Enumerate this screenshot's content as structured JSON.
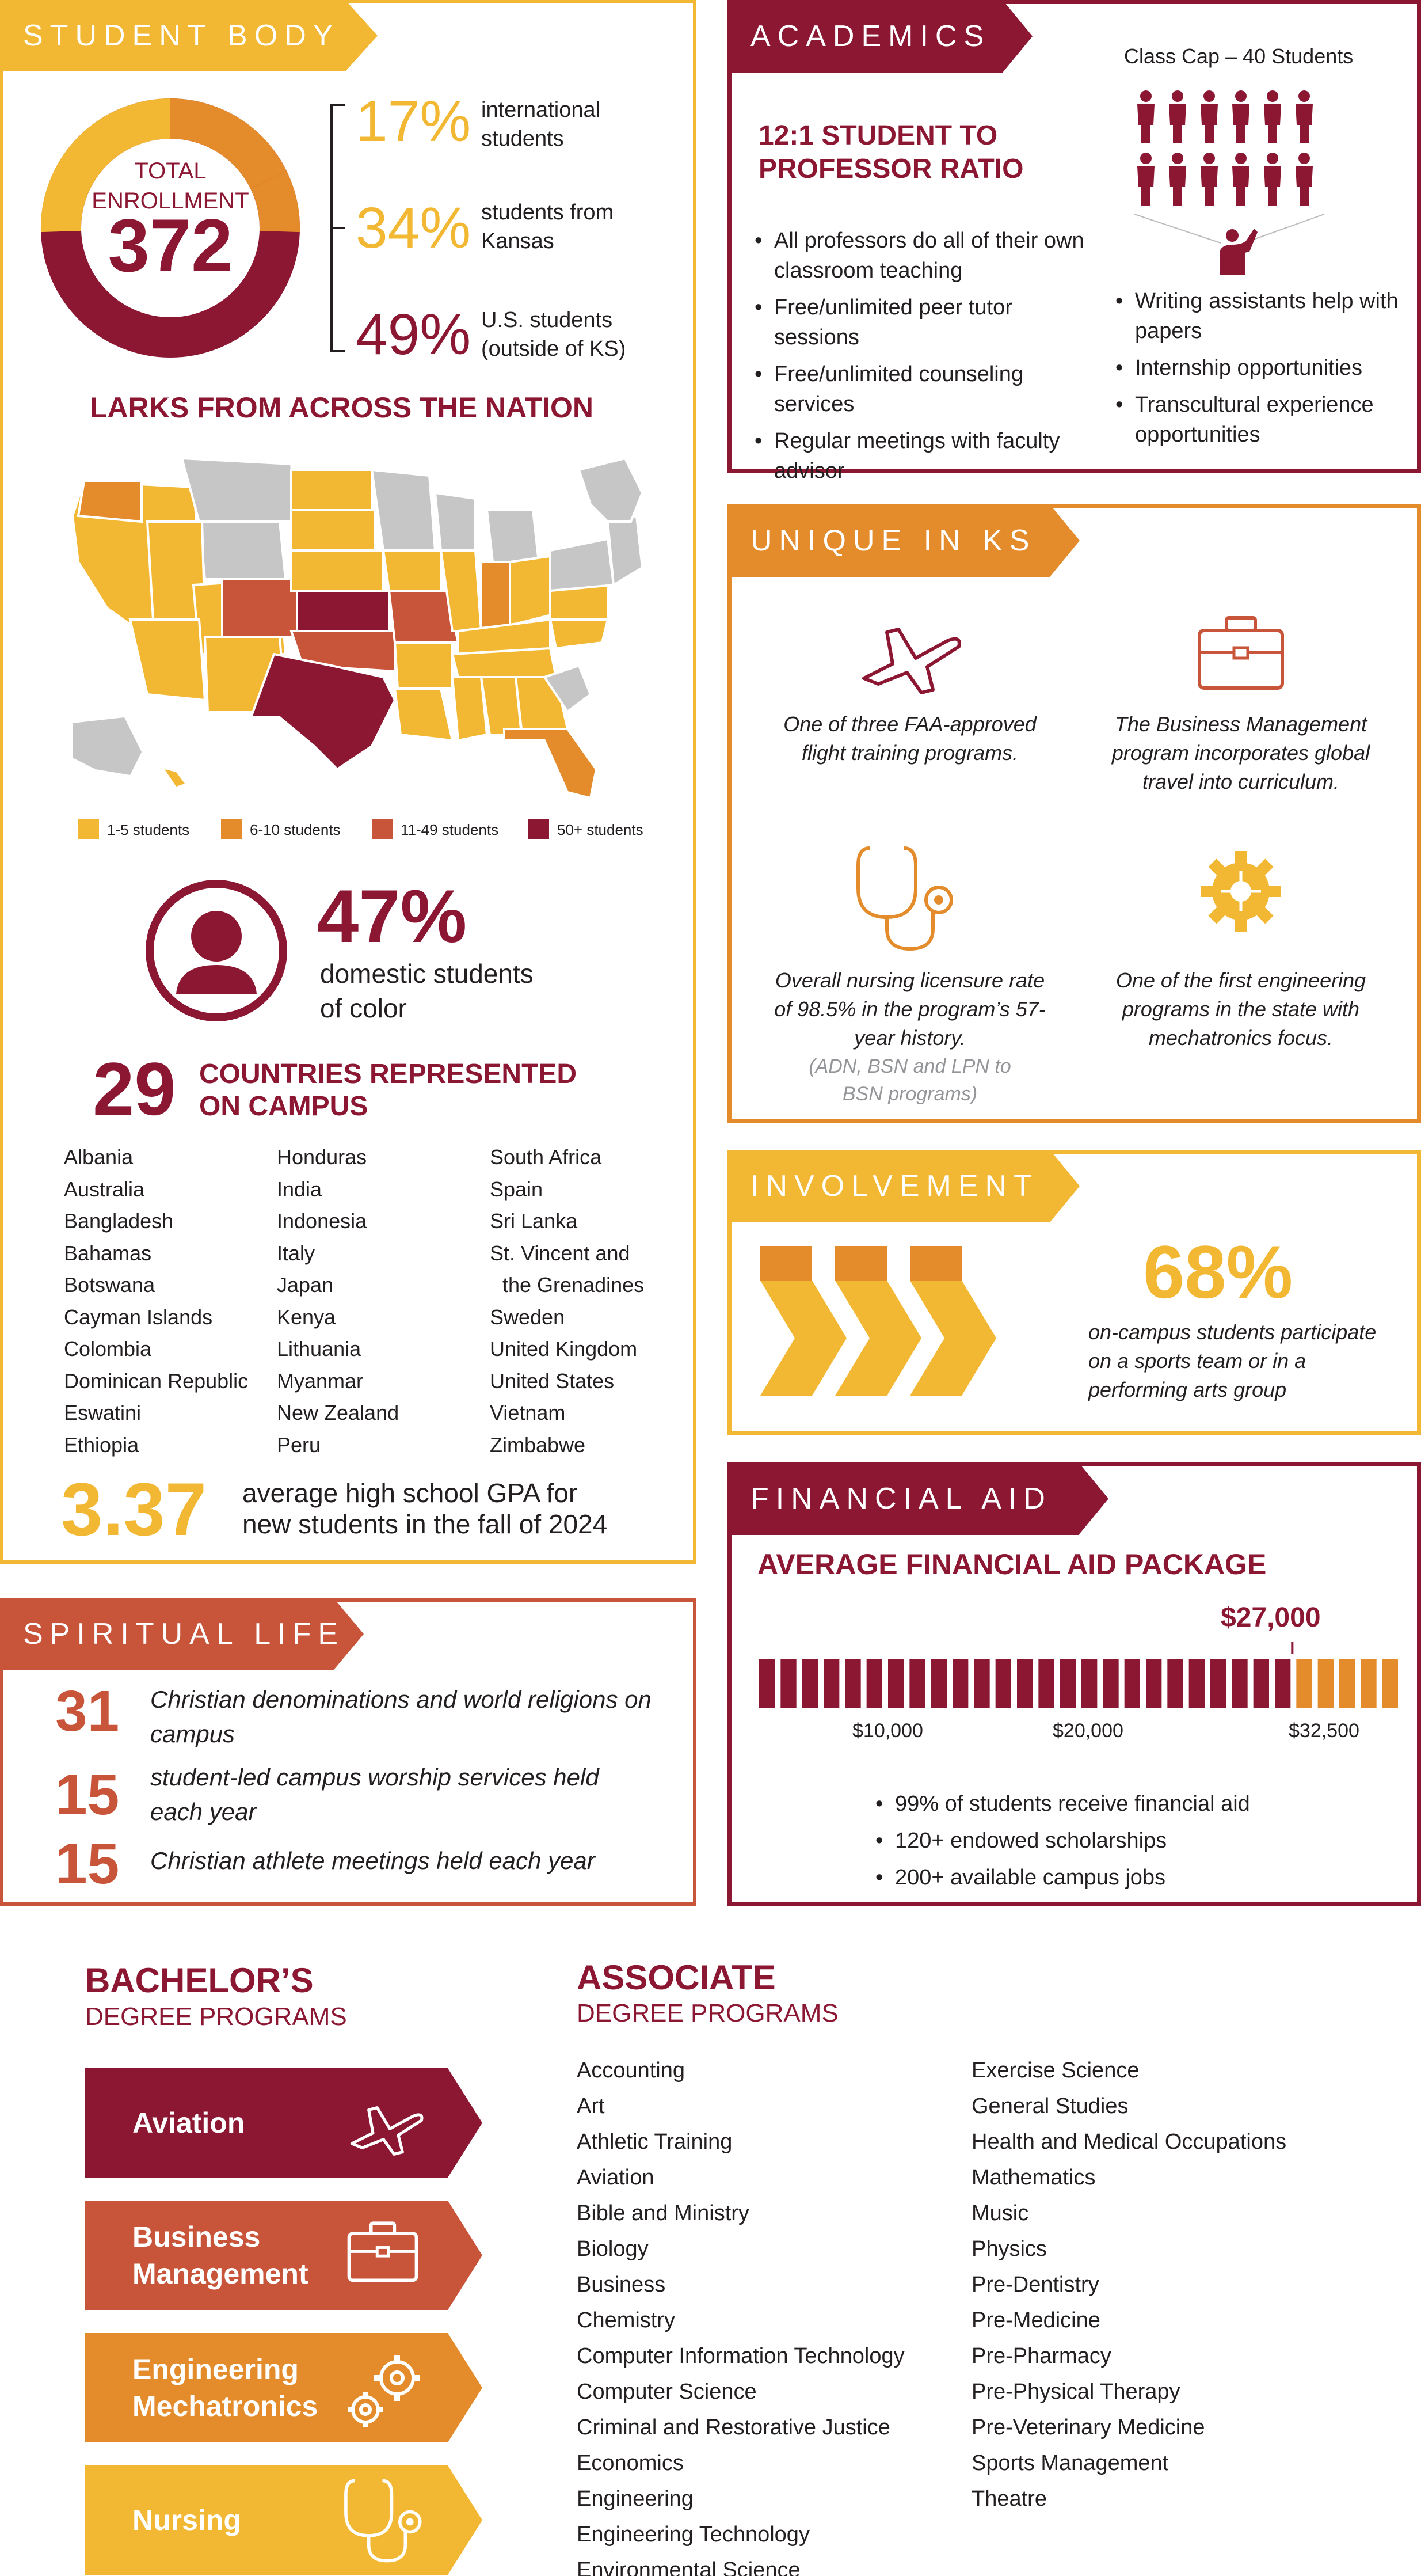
{
  "colors": {
    "maroon": "#8c1733",
    "orange": "#e48c2b",
    "yellow": "#f2b833",
    "rust": "#c8543a",
    "gray": "#c6c6c6"
  },
  "student_body": {
    "tab": "STUDENT BODY",
    "donut_label": "TOTAL ENROLLMENT",
    "total": "372",
    "stats": [
      {
        "pct": "17%",
        "text_l1": "international",
        "text_l2": "students"
      },
      {
        "pct": "34%",
        "text_l1": "students from",
        "text_l2": "Kansas"
      },
      {
        "pct": "49%",
        "text_l1": "U.S. students",
        "text_l2": "(outside of KS)"
      }
    ],
    "map_title": "LARKS FROM ACROSS THE NATION",
    "legend": [
      "1-5 students",
      "6-10 students",
      "11-49 students",
      "50+ students"
    ],
    "diversity_pct": "47%",
    "diversity_l1": "domestic students",
    "diversity_l2": "of color",
    "countries_count": "29",
    "countries_l1": "COUNTRIES REPRESENTED",
    "countries_l2": "ON CAMPUS",
    "countries_col1": [
      "Albania",
      "Australia",
      "Bangladesh",
      "Bahamas",
      "Botswana",
      "Cayman Islands",
      "Colombia",
      "Dominican Republic",
      "Eswatini",
      "Ethiopia"
    ],
    "countries_col2": [
      "Honduras",
      "India",
      "Indonesia",
      "Italy",
      "Japan",
      "Kenya",
      "Lithuania",
      "Myanmar",
      "New Zealand",
      "Peru"
    ],
    "countries_col3": [
      "South Africa",
      "Spain",
      "Sri Lanka",
      "St. Vincent and",
      "the Grenadines",
      "Sweden",
      "United Kingdom",
      "United States",
      "Vietnam",
      "Zimbabwe"
    ],
    "gpa": "3.37",
    "gpa_l1": "average high school GPA for",
    "gpa_l2": "new students in the fall of 2024"
  },
  "academics": {
    "tab": "ACADEMICS",
    "class_cap": "Class Cap – 40 Students",
    "ratio_l1": "12:1 STUDENT TO",
    "ratio_l2": "PROFESSOR RATIO",
    "bullets_left": [
      "All professors do all of their own classroom teaching",
      "Free/unlimited peer tutor sessions",
      "Free/unlimited counseling services",
      "Regular meetings with faculty advisor"
    ],
    "bullets_right": [
      "Writing assistants help with papers",
      "Internship opportunities",
      "Transcultural experience opportunities"
    ]
  },
  "unique": {
    "tab": "UNIQUE IN KS",
    "items": [
      {
        "icon": "airplane-icon",
        "text": "One of three FAA-approved flight training programs."
      },
      {
        "icon": "briefcase-icon",
        "text": "The Business Management program incorporates global travel into curriculum."
      },
      {
        "icon": "stethoscope-icon",
        "text": "Overall nursing licensure rate of 98.5% in the program’s 57-year history.",
        "note": "(ADN, BSN and LPN to BSN programs)"
      },
      {
        "icon": "gear-icon",
        "text": "One of the first engineering programs in the state with mechatronics focus."
      }
    ]
  },
  "involvement": {
    "tab": "INVOLVEMENT",
    "pct": "68%",
    "text": "on-campus students participate on a sports team or in a performing arts group"
  },
  "financial": {
    "tab": "FINANCIAL AID",
    "title": "AVERAGE FINANCIAL AID PACKAGE",
    "highlight": "$27,000",
    "ticks": [
      "$10,000",
      "$20,000",
      "$32,500"
    ],
    "bullets": [
      "99% of students receive financial aid",
      "120+ endowed scholarships",
      "200+ available campus jobs"
    ]
  },
  "spiritual": {
    "tab": "SPIRITUAL LIFE",
    "stats": [
      {
        "num": "31",
        "text": "Christian denominations and world religions on campus"
      },
      {
        "num": "15",
        "text": "student-led campus worship services held each year"
      },
      {
        "num": "15",
        "text": "Christian athlete meetings held each year"
      }
    ]
  },
  "bachelor": {
    "title": "BACHELOR’S",
    "subtitle": "DEGREE PROGRAMS",
    "programs": [
      {
        "label": "Aviation",
        "icon": "airplane-icon"
      },
      {
        "label": "Business Management",
        "icon": "briefcase-icon"
      },
      {
        "label": "Engineering Mechatronics",
        "icon": "gears-icon"
      },
      {
        "label": "Nursing",
        "icon": "stethoscope-icon"
      }
    ]
  },
  "associate": {
    "title": "ASSOCIATE",
    "subtitle": "DEGREE PROGRAMS",
    "col1": [
      "Accounting",
      "Art",
      "Athletic Training",
      "Aviation",
      "Bible and Ministry",
      "Biology",
      "Business",
      "Chemistry",
      "Computer Information Technology",
      "Computer Science",
      "Criminal and Restorative Justice",
      "Economics",
      "Engineering",
      "Engineering Technology",
      "Environmental Science"
    ],
    "col2": [
      "Exercise Science",
      "General Studies",
      "Health and Medical Occupations",
      "Mathematics",
      "Music",
      "Physics",
      "Pre-Dentistry",
      "Pre-Medicine",
      "Pre-Pharmacy",
      "Pre-Physical Therapy",
      "Pre-Veterinary Medicine",
      "Sports Management",
      "Theatre"
    ]
  },
  "fin_bars": {
    "total": 32500,
    "highlight": 27000,
    "count": 30
  }
}
